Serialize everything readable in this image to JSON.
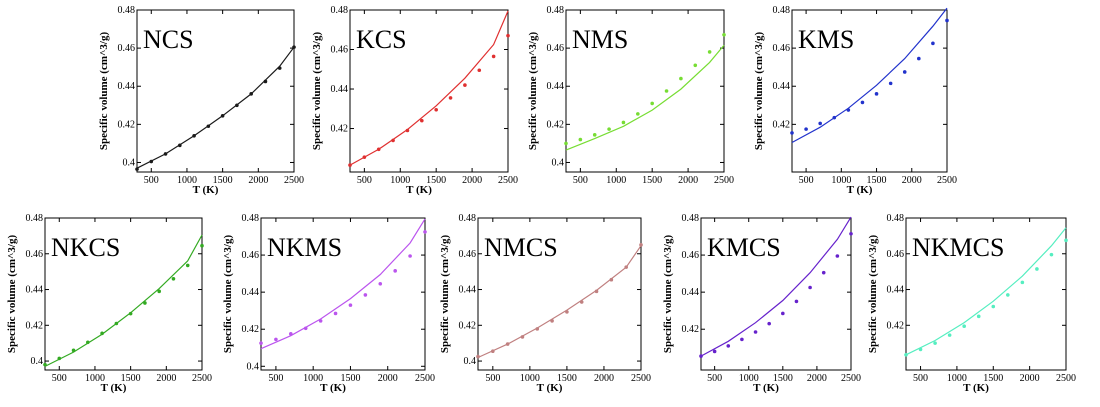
{
  "chart_data": [
    {
      "type": "scatter",
      "title": "NCS",
      "color": "#1a1a1a",
      "xlabel": "T (K)",
      "ylabel": "Specific volume (cm^3/g)",
      "xlim": [
        300,
        2500
      ],
      "ylim": [
        0.395,
        0.48
      ],
      "xticks": [
        "500",
        "1000",
        "1500",
        "2000",
        "2500"
      ],
      "yticks": [
        "0.4",
        "0.42",
        "0.44",
        "0.46",
        "0.48"
      ],
      "series": [
        {
          "kind": "points",
          "x": [
            300,
            500,
            700,
            900,
            1100,
            1300,
            1500,
            1700,
            1900,
            2100,
            2300,
            2500
          ],
          "y": [
            0.3965,
            0.4005,
            0.4045,
            0.409,
            0.414,
            0.419,
            0.4245,
            0.43,
            0.436,
            0.4425,
            0.4495,
            0.4605
          ]
        },
        {
          "kind": "line",
          "x": [
            300,
            700,
            1100,
            1500,
            1900,
            2300,
            2500
          ],
          "y": [
            0.397,
            0.4045,
            0.414,
            0.4245,
            0.436,
            0.4505,
            0.4605
          ]
        }
      ]
    },
    {
      "type": "scatter",
      "title": "KCS",
      "color": "#e03030",
      "xlabel": "T (K)",
      "ylabel": "Specific volume (cm^3/g)",
      "xlim": [
        300,
        2500
      ],
      "ylim": [
        0.398,
        0.48
      ],
      "xticks": [
        "500",
        "1000",
        "1500",
        "2000",
        "2500"
      ],
      "yticks": [
        "0.42",
        "0.44",
        "0.46",
        "0.48"
      ],
      "series": [
        {
          "kind": "points",
          "x": [
            300,
            500,
            700,
            900,
            1100,
            1300,
            1500,
            1700,
            1900,
            2100,
            2300,
            2500
          ],
          "y": [
            0.4015,
            0.4055,
            0.4095,
            0.414,
            0.419,
            0.424,
            0.4295,
            0.4355,
            0.442,
            0.4495,
            0.4565,
            0.467
          ]
        },
        {
          "kind": "line",
          "x": [
            300,
            700,
            1100,
            1500,
            1900,
            2300,
            2500
          ],
          "y": [
            0.4015,
            0.4095,
            0.4195,
            0.4315,
            0.4455,
            0.4625,
            0.4795
          ]
        }
      ]
    },
    {
      "type": "scatter",
      "title": "NMS",
      "color": "#77dd33",
      "xlabel": "",
      "ylabel": "Specific volume (cm^3/g)",
      "xlim": [
        300,
        2500
      ],
      "ylim": [
        0.395,
        0.48
      ],
      "xticks": [
        "500",
        "1000",
        "1500",
        "2000",
        "2500"
      ],
      "yticks": [
        "0.4",
        "0.42",
        "0.44",
        "0.46",
        "0.48"
      ],
      "series": [
        {
          "kind": "points",
          "x": [
            300,
            500,
            700,
            900,
            1100,
            1300,
            1500,
            1700,
            1900,
            2100,
            2300,
            2500
          ],
          "y": [
            0.41,
            0.412,
            0.4145,
            0.4175,
            0.421,
            0.4255,
            0.431,
            0.4375,
            0.444,
            0.451,
            0.458,
            0.467
          ]
        },
        {
          "kind": "line",
          "x": [
            300,
            700,
            1100,
            1500,
            1900,
            2300,
            2500
          ],
          "y": [
            0.4065,
            0.4125,
            0.419,
            0.4275,
            0.4385,
            0.4525,
            0.4615
          ]
        }
      ]
    },
    {
      "type": "scatter",
      "title": "KMS",
      "color": "#2233cc",
      "xlabel": "T (K)",
      "ylabel": "Specific volume (cm^3/g)",
      "xlim": [
        300,
        2500
      ],
      "ylim": [
        0.395,
        0.48
      ],
      "xticks": [
        "500",
        "1000",
        "1500",
        "2000",
        "2500"
      ],
      "yticks": [
        "0.42",
        "0.44",
        "0.46",
        "0.48"
      ],
      "series": [
        {
          "kind": "points",
          "x": [
            300,
            500,
            700,
            900,
            1100,
            1300,
            1500,
            1700,
            1900,
            2100,
            2300,
            2500
          ],
          "y": [
            0.4155,
            0.4175,
            0.4205,
            0.4235,
            0.4275,
            0.4315,
            0.436,
            0.4415,
            0.4475,
            0.4545,
            0.4625,
            0.4745
          ]
        },
        {
          "kind": "line",
          "x": [
            300,
            700,
            1100,
            1500,
            1900,
            2300,
            2500
          ],
          "y": [
            0.4105,
            0.4185,
            0.4285,
            0.4405,
            0.4545,
            0.4715,
            0.481
          ]
        }
      ]
    },
    {
      "type": "scatter",
      "title": "NKCS",
      "color": "#33aa22",
      "xlabel": "T (K)",
      "ylabel": "Specific volume (cm^3/g)",
      "xlim": [
        300,
        2500
      ],
      "ylim": [
        0.395,
        0.48
      ],
      "xticks": [
        "500",
        "1000",
        "1500",
        "2000",
        "2500"
      ],
      "yticks": [
        "0.4",
        "0.42",
        "0.44",
        "0.46",
        "0.48"
      ],
      "series": [
        {
          "kind": "points",
          "x": [
            300,
            500,
            700,
            900,
            1100,
            1300,
            1500,
            1700,
            1900,
            2100,
            2300,
            2500
          ],
          "y": [
            0.398,
            0.4015,
            0.406,
            0.4105,
            0.4155,
            0.421,
            0.4265,
            0.4325,
            0.439,
            0.446,
            0.4535,
            0.4645
          ]
        },
        {
          "kind": "line",
          "x": [
            300,
            700,
            1100,
            1500,
            1900,
            2300,
            2500
          ],
          "y": [
            0.397,
            0.405,
            0.415,
            0.427,
            0.4405,
            0.456,
            0.4705
          ]
        }
      ]
    },
    {
      "type": "scatter",
      "title": "NKMS",
      "color": "#bb55ee",
      "xlabel": "T (K)",
      "ylabel": "Specific volume (cm^3/g)",
      "xlim": [
        300,
        2500
      ],
      "ylim": [
        0.398,
        0.48
      ],
      "xticks": [
        "500",
        "1000",
        "1500",
        "2000",
        "2500"
      ],
      "yticks": [
        "0.4",
        "0.42",
        "0.44",
        "0.46",
        "0.48"
      ],
      "series": [
        {
          "kind": "points",
          "x": [
            300,
            500,
            700,
            900,
            1100,
            1300,
            1500,
            1700,
            1900,
            2100,
            2300,
            2500
          ],
          "y": [
            0.4125,
            0.4145,
            0.4175,
            0.4205,
            0.4245,
            0.4285,
            0.433,
            0.4385,
            0.4445,
            0.4515,
            0.4595,
            0.4725
          ]
        },
        {
          "kind": "line",
          "x": [
            300,
            700,
            1100,
            1500,
            1900,
            2300,
            2500
          ],
          "y": [
            0.4095,
            0.4165,
            0.4255,
            0.4365,
            0.4495,
            0.4665,
            0.4795
          ]
        }
      ]
    },
    {
      "type": "scatter",
      "title": "NMCS",
      "color": "#c08080",
      "xlabel": "T (K)",
      "ylabel": "Specific volume (cm^3/g)",
      "xlim": [
        300,
        2500
      ],
      "ylim": [
        0.395,
        0.48
      ],
      "xticks": [
        "500",
        "1000",
        "1500",
        "2000",
        "2500"
      ],
      "yticks": [
        "0.4",
        "0.42",
        "0.44",
        "0.46",
        "0.48"
      ],
      "series": [
        {
          "kind": "points",
          "x": [
            300,
            500,
            700,
            900,
            1100,
            1300,
            1500,
            1700,
            1900,
            2100,
            2300,
            2500
          ],
          "y": [
            0.4025,
            0.4055,
            0.4095,
            0.4135,
            0.418,
            0.4225,
            0.4275,
            0.433,
            0.439,
            0.4455,
            0.4525,
            0.465
          ]
        },
        {
          "kind": "line",
          "x": [
            300,
            700,
            1100,
            1500,
            1900,
            2300,
            2500
          ],
          "y": [
            0.402,
            0.4095,
            0.4185,
            0.4285,
            0.4395,
            0.4525,
            0.4645
          ]
        }
      ]
    },
    {
      "type": "scatter",
      "title": "KMCS",
      "color": "#6622cc",
      "xlabel": "T (K)",
      "ylabel": "Specific volume (cm^3/g)",
      "xlim": [
        300,
        2500
      ],
      "ylim": [
        0.398,
        0.48
      ],
      "xticks": [
        "500",
        "1000",
        "1500",
        "2000",
        "2500"
      ],
      "yticks": [
        "0.42",
        "0.44",
        "0.46",
        "0.48"
      ],
      "series": [
        {
          "kind": "points",
          "x": [
            300,
            500,
            700,
            900,
            1100,
            1300,
            1500,
            1700,
            1900,
            2100,
            2300,
            2500
          ],
          "y": [
            0.4055,
            0.408,
            0.411,
            0.4145,
            0.4185,
            0.423,
            0.4285,
            0.435,
            0.4425,
            0.4505,
            0.4595,
            0.4715
          ]
        },
        {
          "kind": "line",
          "x": [
            300,
            700,
            1100,
            1500,
            1900,
            2300,
            2500
          ],
          "y": [
            0.4055,
            0.4135,
            0.4235,
            0.4355,
            0.4505,
            0.4685,
            0.4805
          ]
        }
      ]
    },
    {
      "type": "scatter",
      "title": "NKMCS",
      "color": "#55eec0",
      "xlabel": "T (K)",
      "ylabel": "Specific volume (cm^3/g)",
      "xlim": [
        300,
        2500
      ],
      "ylim": [
        0.395,
        0.48
      ],
      "xticks": [
        "500",
        "1000",
        "1500",
        "2000",
        "2500"
      ],
      "yticks": [
        "0.42",
        "0.44",
        "0.46",
        "0.48"
      ],
      "series": [
        {
          "kind": "points",
          "x": [
            300,
            500,
            700,
            900,
            1100,
            1300,
            1500,
            1700,
            1900,
            2100,
            2300,
            2500
          ],
          "y": [
            0.4035,
            0.4065,
            0.41,
            0.4145,
            0.4195,
            0.425,
            0.4305,
            0.437,
            0.444,
            0.4515,
            0.4595,
            0.4675
          ]
        },
        {
          "kind": "line",
          "x": [
            300,
            700,
            1100,
            1500,
            1900,
            2300,
            2500
          ],
          "y": [
            0.4035,
            0.4115,
            0.4215,
            0.4335,
            0.4475,
            0.4645,
            0.4745
          ]
        }
      ]
    }
  ]
}
